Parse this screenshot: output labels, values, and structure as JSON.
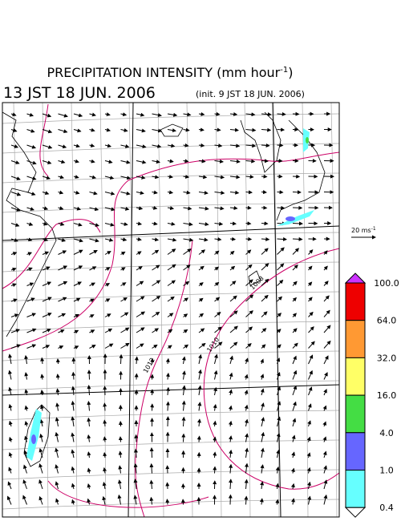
{
  "header": {
    "title": "PRECIPITATION INTENSITY (mm hour",
    "title_exp": "-1",
    "title_end": ")",
    "valid_time": "13 JST 18 JUN. 2006",
    "init_time": "(init. 9 JST 18 JUN. 2006)"
  },
  "wind_scale": {
    "label": "20 ms",
    "label_exp": "-1"
  },
  "colorbar": {
    "labels": [
      "100.0",
      "64.0",
      "32.0",
      "16.0",
      "4.0",
      "1.0",
      "0.4"
    ],
    "colors": [
      "#cc33ff",
      "#ee0000",
      "#ff9933",
      "#ffff66",
      "#44dd44",
      "#6666ff",
      "#66ffff",
      "#ffffff"
    ]
  },
  "contour_labels": [
    "1012",
    "1010",
    "1008"
  ]
}
